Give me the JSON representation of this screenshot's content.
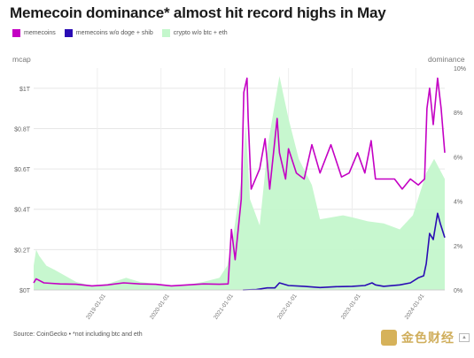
{
  "title": "Memecoin dominance* almost hit record highs in May",
  "legend": [
    {
      "label": "memecoins",
      "color": "#c400c4"
    },
    {
      "label": "memecoins w/o doge + shib",
      "color": "#2a0cb4"
    },
    {
      "label": "crypto w/o btc + eth",
      "color": "#c4f7cc"
    }
  ],
  "footer": {
    "source": "Source: CoinGecko • *not including btc and eth",
    "logo_text": "金色财经"
  },
  "chart_data": {
    "type": "line",
    "title": "Memecoin dominance* almost hit record highs in May",
    "left_axis": {
      "title": "mcap",
      "ticks": [
        "$0T",
        "$0.2T",
        "$0.4T",
        "$0.6T",
        "$0.8T",
        "$1T"
      ],
      "range": [
        0,
        1.1
      ]
    },
    "right_axis": {
      "title": "dominance",
      "ticks": [
        "0%",
        "2%",
        "4%",
        "6%",
        "8%",
        "10%"
      ],
      "range": [
        0,
        10
      ]
    },
    "x_axis": {
      "ticks": [
        "2019-01-01",
        "2020-01-01",
        "2021-01-01",
        "2022-01-01",
        "2023-01-01",
        "2024-01-01"
      ],
      "range": [
        "2018-01-01",
        "2024-06-15"
      ]
    },
    "grid": true,
    "legend_position": "top-left",
    "series": [
      {
        "name": "crypto w/o btc + eth",
        "style": "area",
        "color": "#c4f7cc",
        "axis": "left",
        "x": [
          "2018-01-01",
          "2018-01-15",
          "2018-02-01",
          "2018-03-15",
          "2018-05-01",
          "2018-07-01",
          "2018-09-01",
          "2018-12-01",
          "2019-03-01",
          "2019-06-15",
          "2019-09-01",
          "2019-12-01",
          "2020-03-15",
          "2020-06-01",
          "2020-09-01",
          "2020-12-01",
          "2021-01-15",
          "2021-02-15",
          "2021-04-15",
          "2021-05-01",
          "2021-05-25",
          "2021-07-20",
          "2021-09-05",
          "2021-11-10",
          "2022-01-01",
          "2022-03-01",
          "2022-05-15",
          "2022-07-01",
          "2022-11-10",
          "2023-01-01",
          "2023-04-01",
          "2023-07-01",
          "2023-10-01",
          "2023-12-15",
          "2024-03-01",
          "2024-04-15",
          "2024-06-15"
        ],
        "values": [
          0.12,
          0.2,
          0.17,
          0.12,
          0.1,
          0.07,
          0.04,
          0.02,
          0.03,
          0.06,
          0.04,
          0.03,
          0.02,
          0.025,
          0.04,
          0.06,
          0.12,
          0.25,
          0.6,
          0.82,
          0.45,
          0.32,
          0.72,
          1.06,
          0.85,
          0.65,
          0.52,
          0.35,
          0.37,
          0.36,
          0.34,
          0.33,
          0.3,
          0.37,
          0.58,
          0.65,
          0.55
        ]
      },
      {
        "name": "memecoins",
        "style": "line",
        "color": "#c400c4",
        "axis": "left",
        "x": [
          "2018-01-01",
          "2018-01-15",
          "2018-03-01",
          "2018-06-01",
          "2018-09-01",
          "2018-12-01",
          "2019-03-01",
          "2019-06-01",
          "2019-09-01",
          "2019-12-01",
          "2020-03-01",
          "2020-06-01",
          "2020-09-01",
          "2020-12-01",
          "2021-01-20",
          "2021-02-08",
          "2021-03-01",
          "2021-04-05",
          "2021-04-20",
          "2021-05-08",
          "2021-05-15",
          "2021-06-01",
          "2021-07-20",
          "2021-08-20",
          "2021-09-15",
          "2021-10-28",
          "2021-11-10",
          "2021-12-15",
          "2022-01-01",
          "2022-02-15",
          "2022-04-01",
          "2022-05-15",
          "2022-07-01",
          "2022-09-01",
          "2022-11-01",
          "2022-12-15",
          "2023-02-01",
          "2023-03-15",
          "2023-04-20",
          "2023-05-15",
          "2023-07-01",
          "2023-09-01",
          "2023-10-15",
          "2023-12-01",
          "2024-01-15",
          "2024-02-20",
          "2024-03-05",
          "2024-03-20",
          "2024-04-10",
          "2024-05-05",
          "2024-05-25",
          "2024-06-15"
        ],
        "values": [
          0.035,
          0.055,
          0.035,
          0.03,
          0.028,
          0.02,
          0.025,
          0.035,
          0.03,
          0.028,
          0.02,
          0.025,
          0.03,
          0.028,
          0.03,
          0.3,
          0.15,
          0.45,
          0.98,
          1.05,
          0.85,
          0.5,
          0.6,
          0.75,
          0.5,
          0.85,
          0.68,
          0.55,
          0.7,
          0.58,
          0.55,
          0.72,
          0.58,
          0.72,
          0.56,
          0.58,
          0.68,
          0.58,
          0.74,
          0.55,
          0.55,
          0.55,
          0.5,
          0.55,
          0.52,
          0.55,
          0.9,
          1.0,
          0.82,
          1.05,
          0.9,
          0.68
        ]
      },
      {
        "name": "memecoins w/o doge + shib",
        "style": "line",
        "color": "#2a0cb4",
        "axis": "left",
        "x": [
          "2021-04-15",
          "2021-07-01",
          "2021-09-01",
          "2021-10-15",
          "2021-11-10",
          "2022-01-01",
          "2022-04-01",
          "2022-07-01",
          "2022-10-01",
          "2023-01-01",
          "2023-03-15",
          "2023-04-25",
          "2023-05-15",
          "2023-07-01",
          "2023-10-01",
          "2023-12-01",
          "2024-01-15",
          "2024-02-15",
          "2024-03-01",
          "2024-03-20",
          "2024-04-10",
          "2024-05-05",
          "2024-05-20",
          "2024-06-15"
        ],
        "values": [
          0.0,
          0.002,
          0.01,
          0.01,
          0.035,
          0.022,
          0.018,
          0.012,
          0.016,
          0.018,
          0.022,
          0.035,
          0.025,
          0.018,
          0.025,
          0.035,
          0.06,
          0.07,
          0.13,
          0.28,
          0.25,
          0.38,
          0.33,
          0.26
        ]
      }
    ]
  }
}
